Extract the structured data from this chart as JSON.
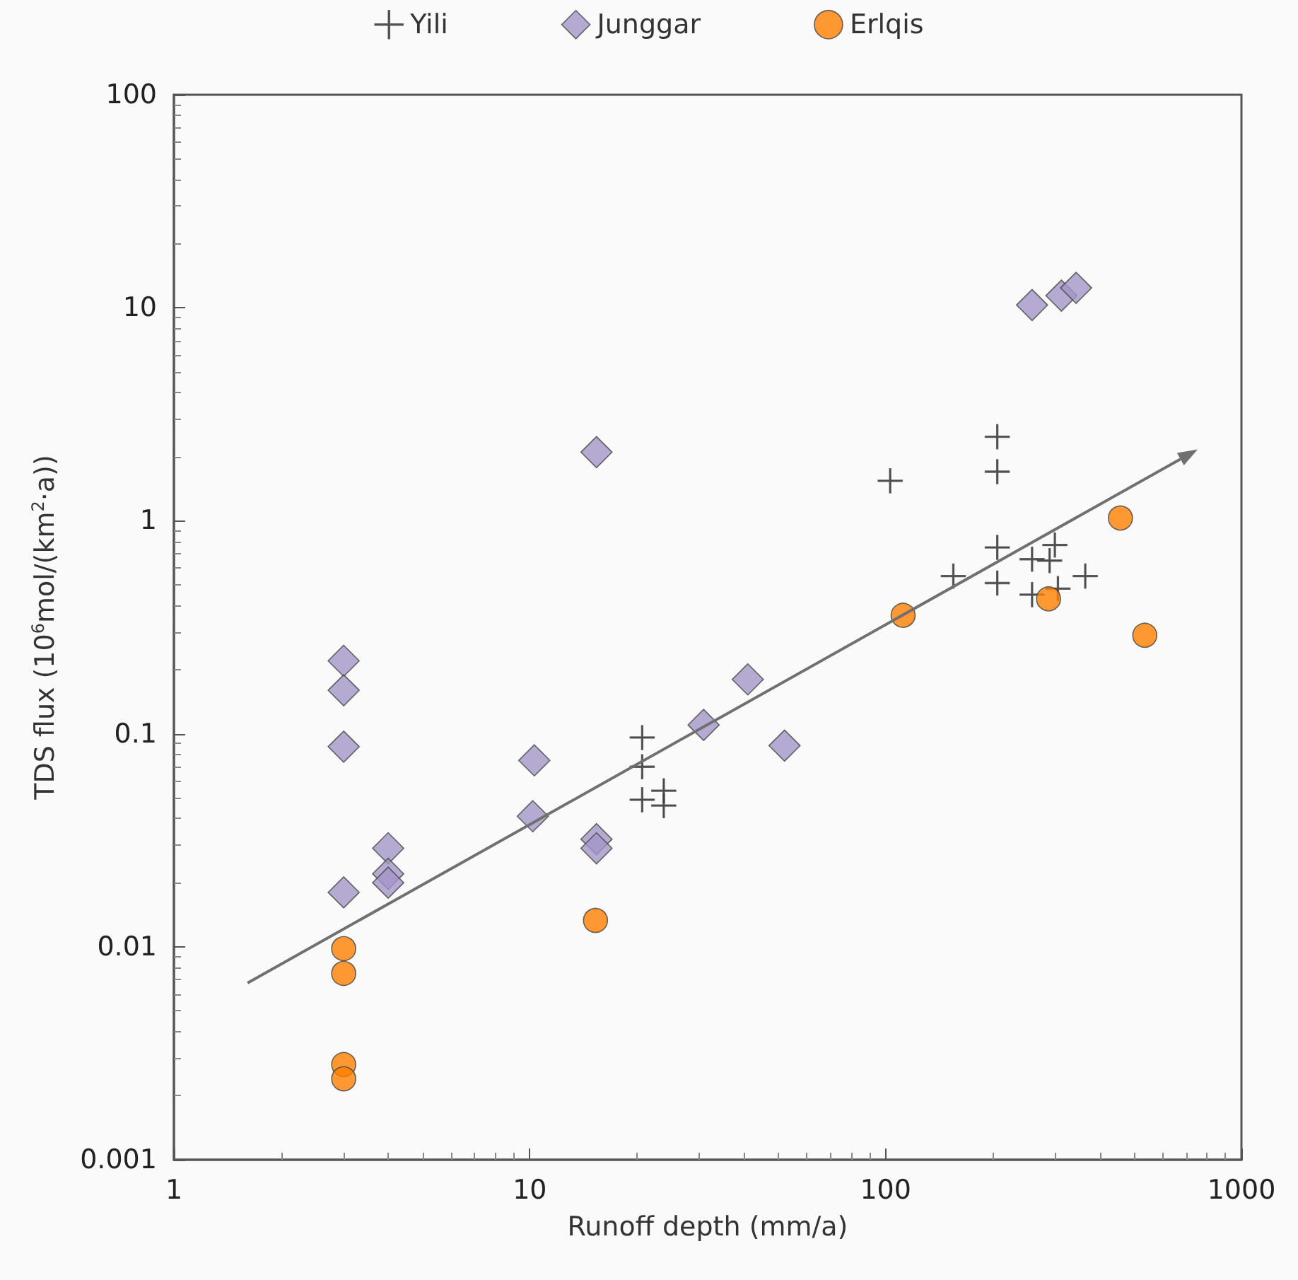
{
  "chart_data": {
    "type": "scatter",
    "xlabel": "Runoff depth (mm/a)",
    "ylabel": "TDS flux (10$^{6}$mol/(km$^{2}$·a))",
    "log": "xy",
    "xlim": [
      1,
      1000
    ],
    "xticks": [
      1,
      10,
      100,
      1000
    ],
    "ylim": [
      0.001,
      100
    ],
    "yticks": [
      0.001,
      0.01,
      0.1,
      1,
      10,
      100
    ],
    "grid": false,
    "legend": "top",
    "series": [
      {
        "name": "Yili",
        "color": "#333333",
        "marker": "cross",
        "x": [
          103,
          206,
          206,
          206,
          206,
          155,
          299,
          258,
          289,
          258,
          305,
          364,
          20.7,
          20.7,
          20.7,
          23.8,
          23.8
        ],
        "values": [
          1.54,
          2.48,
          1.7,
          0.75,
          0.51,
          0.55,
          0.77,
          0.66,
          0.65,
          0.45,
          0.48,
          0.55,
          0.096,
          0.07,
          0.049,
          0.054,
          0.046
        ]
      },
      {
        "name": "Junggar",
        "color": "#a496c8",
        "marker": "diamond",
        "x": [
          3,
          3,
          3,
          3,
          4,
          4,
          4,
          10.3,
          10.2,
          15.4,
          15.4,
          30.8,
          41,
          52,
          15.4,
          258,
          312,
          343
        ],
        "values": [
          0.22,
          0.16,
          0.087,
          0.018,
          0.029,
          0.022,
          0.02,
          0.075,
          0.041,
          0.032,
          0.029,
          0.11,
          0.18,
          0.088,
          2.1,
          10.3,
          11.4,
          12.4
        ]
      },
      {
        "name": "Erlqis",
        "color": "#ff8000",
        "marker": "circle",
        "x": [
          3,
          3,
          3,
          3,
          15.3,
          112,
          287,
          457,
          535
        ],
        "values": [
          0.0098,
          0.0075,
          0.0028,
          0.0024,
          0.0133,
          0.36,
          0.43,
          1.03,
          0.29
        ]
      }
    ]
  }
}
